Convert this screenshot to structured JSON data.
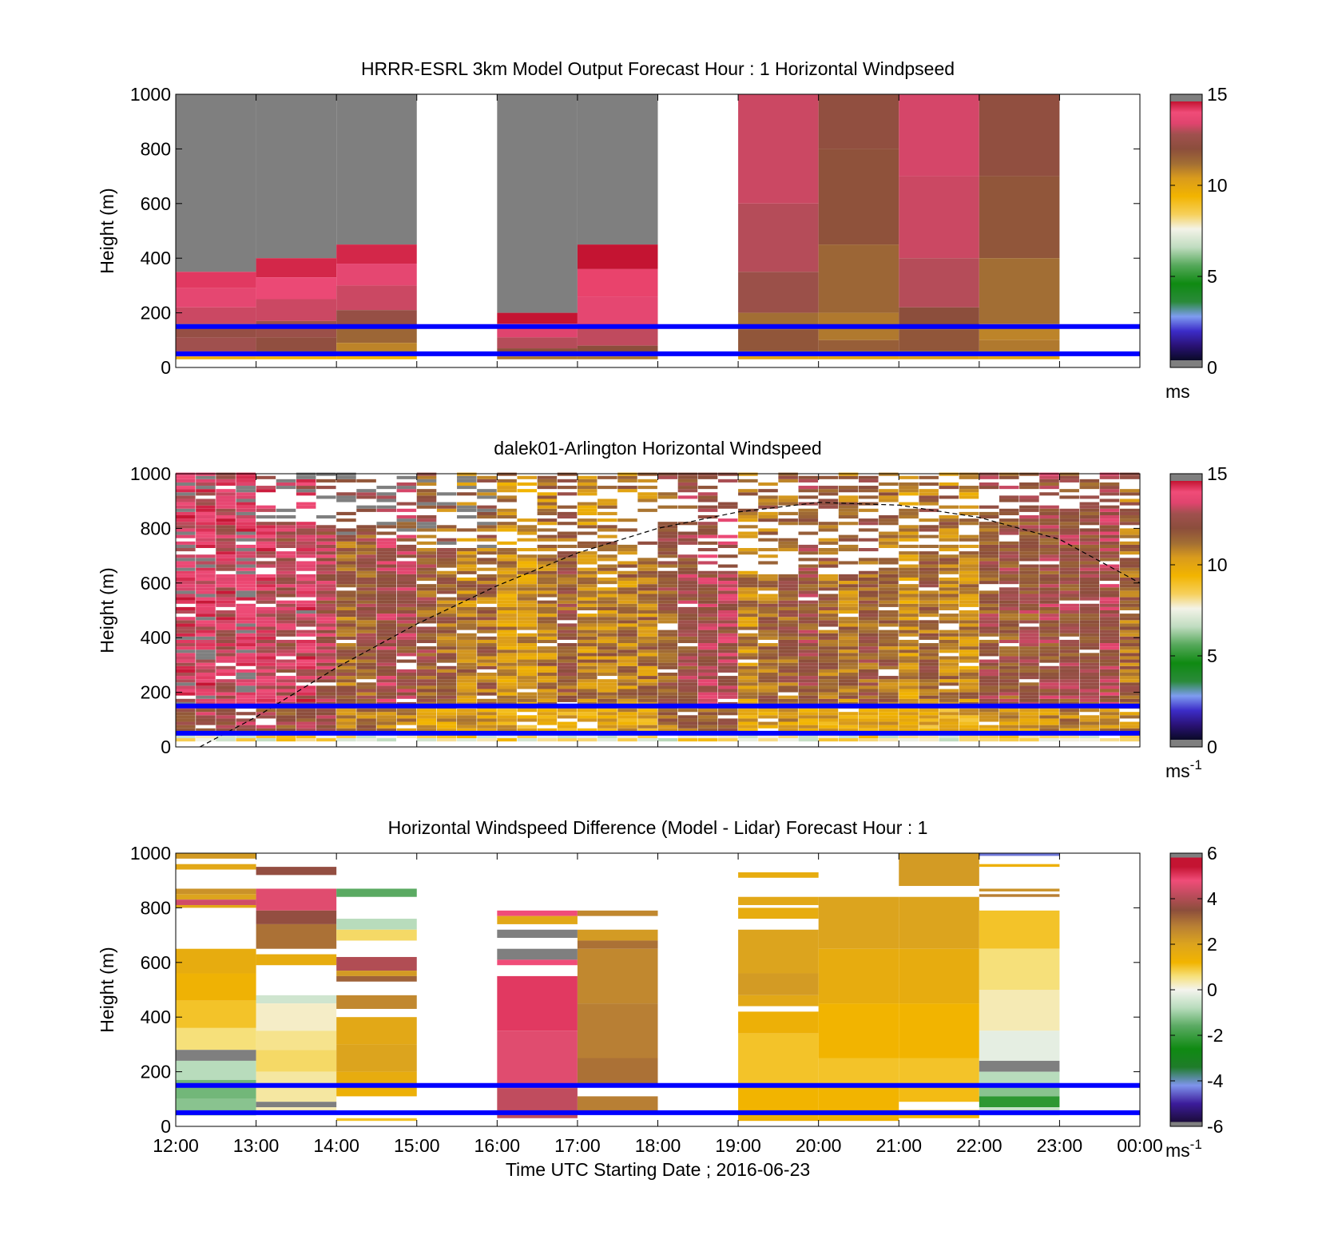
{
  "chart_data": [
    {
      "type": "heatmap",
      "title": "HRRR-ESRL 3km Model Output   Forecast Hour : 1 Horizontal Windpseed",
      "ylabel": "Height (m)",
      "ylim": [
        0,
        1000
      ],
      "yticks": [
        "0",
        "200",
        "400",
        "600",
        "800",
        "1000"
      ],
      "x_range_hours": [
        12,
        24
      ],
      "colorbar": {
        "range": [
          0,
          15
        ],
        "ticks": [
          "0",
          "5",
          "10",
          "15"
        ],
        "unit": "ms",
        "unit_sup": ""
      },
      "reference_lines_m": [
        150,
        50
      ],
      "columns": [
        {
          "start": 12,
          "end": 13,
          "top": 1000,
          "bottom": 30,
          "levels": [
            [
              1000,
              350,
              15.5
            ],
            [
              350,
              290,
              14.2
            ],
            [
              290,
              220,
              13.6
            ],
            [
              220,
              160,
              13.2
            ],
            [
              160,
              110,
              12.4
            ],
            [
              110,
              60,
              12.8
            ],
            [
              60,
              40,
              13.2
            ],
            [
              40,
              30,
              9.6
            ]
          ]
        },
        {
          "start": 13,
          "end": 14,
          "top": 1000,
          "bottom": 30,
          "levels": [
            [
              1000,
              400,
              15.5
            ],
            [
              400,
              330,
              14.4
            ],
            [
              330,
              250,
              13.8
            ],
            [
              250,
              170,
              13.2
            ],
            [
              170,
              110,
              12.6
            ],
            [
              110,
              60,
              12.2
            ],
            [
              60,
              40,
              11.4
            ],
            [
              40,
              30,
              9.4
            ]
          ]
        },
        {
          "start": 14,
          "end": 15,
          "top": 1000,
          "bottom": 30,
          "levels": [
            [
              1000,
              450,
              15.5
            ],
            [
              450,
              380,
              14.4
            ],
            [
              380,
              300,
              13.6
            ],
            [
              300,
              210,
              13.2
            ],
            [
              210,
              150,
              12.4
            ],
            [
              150,
              90,
              11.4
            ],
            [
              90,
              50,
              10.8
            ],
            [
              50,
              30,
              9.4
            ]
          ]
        },
        {
          "start": 16,
          "end": 17,
          "top": 1000,
          "bottom": 30,
          "levels": [
            [
              1000,
              200,
              15.5
            ],
            [
              200,
              160,
              14.6
            ],
            [
              160,
              110,
              13.4
            ],
            [
              110,
              70,
              13.0
            ],
            [
              70,
              40,
              12.0
            ],
            [
              40,
              30,
              11.0
            ]
          ]
        },
        {
          "start": 17,
          "end": 18,
          "top": 1000,
          "bottom": 30,
          "levels": [
            [
              1000,
              450,
              15.5
            ],
            [
              450,
              360,
              14.6
            ],
            [
              360,
              260,
              14.1
            ],
            [
              260,
              150,
              13.6
            ],
            [
              150,
              80,
              13.1
            ],
            [
              80,
              40,
              12.0
            ],
            [
              40,
              30,
              11.0
            ]
          ]
        },
        {
          "start": 19,
          "end": 20,
          "top": 1000,
          "bottom": 30,
          "levels": [
            [
              1000,
              600,
              13.2
            ],
            [
              600,
              350,
              13.0
            ],
            [
              350,
              200,
              12.6
            ],
            [
              200,
              140,
              11.2
            ],
            [
              140,
              60,
              11.8
            ],
            [
              60,
              30,
              10.0
            ]
          ]
        },
        {
          "start": 20,
          "end": 21,
          "top": 1000,
          "bottom": 30,
          "levels": [
            [
              1000,
              800,
              12.2
            ],
            [
              800,
              450,
              11.9
            ],
            [
              450,
              200,
              11.4
            ],
            [
              200,
              100,
              11.0
            ],
            [
              100,
              60,
              11.6
            ],
            [
              60,
              30,
              10.0
            ]
          ]
        },
        {
          "start": 21,
          "end": 22,
          "top": 1000,
          "bottom": 30,
          "levels": [
            [
              1000,
              700,
              13.3
            ],
            [
              700,
              400,
              13.2
            ],
            [
              400,
              220,
              13.0
            ],
            [
              220,
              140,
              12.0
            ],
            [
              140,
              60,
              11.8
            ],
            [
              60,
              30,
              10.2
            ]
          ]
        },
        {
          "start": 22,
          "end": 23,
          "top": 1000,
          "bottom": 30,
          "levels": [
            [
              1000,
              700,
              12.2
            ],
            [
              700,
              400,
              11.8
            ],
            [
              400,
              160,
              11.2
            ],
            [
              160,
              100,
              10.8
            ],
            [
              100,
              60,
              11.0
            ],
            [
              60,
              30,
              10.0
            ]
          ]
        }
      ]
    },
    {
      "type": "heatmap",
      "title": "dalek01-Arlington  Horizontal Windspeed",
      "ylabel": "Height (m)",
      "ylim": [
        0,
        1000
      ],
      "yticks": [
        "0",
        "200",
        "400",
        "600",
        "800",
        "1000"
      ],
      "x_range_hours": [
        12,
        24
      ],
      "colorbar": {
        "range": [
          0,
          15
        ],
        "ticks": [
          "0",
          "5",
          "10",
          "15"
        ],
        "unit": "ms",
        "unit_sup": "-1"
      },
      "reference_lines_m": [
        150,
        50
      ],
      "hour_column_means": [
        13.8,
        13.4,
        12.2,
        11.6,
        11.0,
        11.2,
        12.6,
        11.4,
        11.3,
        10.9,
        11.6,
        11.9
      ],
      "gap_top_m": [
        1000,
        800,
        760,
        720,
        700,
        680,
        640,
        620,
        620,
        700,
        800,
        860
      ],
      "curve": {
        "style": "dashed",
        "points": [
          [
            12.3,
            0
          ],
          [
            13.0,
            110
          ],
          [
            14.0,
            290
          ],
          [
            15.0,
            450
          ],
          [
            16.0,
            590
          ],
          [
            17.0,
            710
          ],
          [
            18.0,
            800
          ],
          [
            19.0,
            860
          ],
          [
            20.0,
            895
          ],
          [
            21.0,
            885
          ],
          [
            22.0,
            840
          ],
          [
            23.0,
            760
          ],
          [
            24.0,
            600
          ]
        ]
      }
    },
    {
      "type": "heatmap",
      "title": "Horizontal Windspeed Difference (Model - Lidar) Forecast Hour : 1",
      "xlabel": "Time UTC  Starting Date ; 2016-06-23",
      "ylabel": "Height (m)",
      "ylim": [
        0,
        1000
      ],
      "yticks": [
        "0",
        "200",
        "400",
        "600",
        "800",
        "1000"
      ],
      "xticks": [
        "12:00",
        "13:00",
        "14:00",
        "15:00",
        "16:00",
        "17:00",
        "18:00",
        "19:00",
        "20:00",
        "21:00",
        "22:00",
        "23:00",
        "00:00"
      ],
      "x_range_hours": [
        12,
        24
      ],
      "colorbar": {
        "range": [
          -6,
          6
        ],
        "ticks": [
          "-6",
          "-4",
          "-2",
          "0",
          "2",
          "4",
          "6"
        ],
        "unit": "ms",
        "unit_sup": "-1"
      },
      "reference_lines_m": [
        150,
        50
      ],
      "columns": [
        {
          "start": 12,
          "end": 13,
          "levels": [
            [
              1000,
              980,
              2.2
            ],
            [
              960,
              940,
              1.8
            ],
            [
              870,
              850,
              2.4
            ],
            [
              850,
              830,
              2.0
            ],
            [
              830,
              810,
              4.4
            ],
            [
              810,
              800,
              1.8
            ],
            [
              650,
              560,
              1.6
            ],
            [
              560,
              460,
              1.3
            ],
            [
              460,
              360,
              1.0
            ],
            [
              360,
              280,
              0.6
            ],
            [
              280,
              240,
              -6.0
            ],
            [
              240,
              170,
              -0.8
            ],
            [
              170,
              100,
              -1.4
            ],
            [
              100,
              40,
              -1.2
            ]
          ]
        },
        {
          "start": 13,
          "end": 14,
          "levels": [
            [
              950,
              920,
              3.6
            ],
            [
              870,
              790,
              4.6
            ],
            [
              790,
              740,
              3.6
            ],
            [
              740,
              650,
              3.0
            ],
            [
              630,
              590,
              1.6
            ],
            [
              480,
              450,
              -0.5
            ],
            [
              450,
              350,
              0.2
            ],
            [
              350,
              280,
              0.5
            ],
            [
              280,
              200,
              0.7
            ],
            [
              200,
              90,
              0.4
            ],
            [
              90,
              70,
              -6.0
            ],
            [
              70,
              50,
              0.3
            ]
          ]
        },
        {
          "start": 14,
          "end": 15,
          "levels": [
            [
              870,
              840,
              -1.6
            ],
            [
              760,
              720,
              -0.8
            ],
            [
              720,
              680,
              0.7
            ],
            [
              620,
              570,
              4.0
            ],
            [
              570,
              550,
              2.2
            ],
            [
              550,
              530,
              3.2
            ],
            [
              480,
              430,
              2.6
            ],
            [
              400,
              300,
              1.8
            ],
            [
              300,
              200,
              2.0
            ],
            [
              200,
              150,
              1.6
            ],
            [
              150,
              110,
              1.4
            ],
            [
              30,
              20,
              1.0
            ]
          ]
        },
        {
          "start": 16,
          "end": 17,
          "levels": [
            [
              790,
              770,
              4.8
            ],
            [
              770,
              740,
              1.8
            ],
            [
              720,
              690,
              -6.0
            ],
            [
              650,
              610,
              -6.0
            ],
            [
              610,
              590,
              4.8
            ],
            [
              550,
              350,
              5.0
            ],
            [
              350,
              140,
              4.6
            ],
            [
              140,
              30,
              4.2
            ]
          ]
        },
        {
          "start": 17,
          "end": 18,
          "levels": [
            [
              790,
              770,
              2.6
            ],
            [
              720,
              680,
              2.2
            ],
            [
              680,
              650,
              3.0
            ],
            [
              650,
              450,
              2.6
            ],
            [
              450,
              250,
              2.8
            ],
            [
              250,
              150,
              3.0
            ],
            [
              110,
              50,
              2.8
            ]
          ]
        },
        {
          "start": 19,
          "end": 20,
          "levels": [
            [
              930,
              910,
              1.6
            ],
            [
              840,
              810,
              1.8
            ],
            [
              800,
              760,
              1.6
            ],
            [
              720,
              560,
              2.0
            ],
            [
              560,
              480,
              2.2
            ],
            [
              480,
              440,
              1.8
            ],
            [
              420,
              340,
              1.4
            ],
            [
              340,
              150,
              1.0
            ],
            [
              150,
              60,
              1.2
            ],
            [
              60,
              20,
              1.4
            ]
          ]
        },
        {
          "start": 20,
          "end": 21,
          "levels": [
            [
              840,
              650,
              2.0
            ],
            [
              650,
              450,
              1.6
            ],
            [
              450,
              250,
              1.2
            ],
            [
              250,
              150,
              1.0
            ],
            [
              150,
              50,
              1.2
            ],
            [
              50,
              20,
              1.3
            ]
          ]
        },
        {
          "start": 21,
          "end": 22,
          "levels": [
            [
              1000,
              880,
              2.2
            ],
            [
              840,
              650,
              2.0
            ],
            [
              650,
              450,
              1.6
            ],
            [
              450,
              250,
              1.2
            ],
            [
              250,
              150,
              1.0
            ],
            [
              150,
              90,
              1.1
            ],
            [
              60,
              30,
              1.2
            ]
          ]
        },
        {
          "start": 22,
          "end": 23,
          "levels": [
            [
              1000,
              990,
              -4.4
            ],
            [
              960,
              950,
              1.4
            ],
            [
              870,
              860,
              2.4
            ],
            [
              850,
              840,
              2.8
            ],
            [
              790,
              650,
              1.0
            ],
            [
              650,
              500,
              0.6
            ],
            [
              500,
              350,
              0.3
            ],
            [
              350,
              240,
              -0.2
            ],
            [
              240,
              200,
              -6.0
            ],
            [
              200,
              150,
              -0.8
            ],
            [
              150,
              110,
              -1.2
            ],
            [
              110,
              70,
              -2.2
            ],
            [
              70,
              40,
              -0.6
            ]
          ]
        }
      ]
    }
  ]
}
